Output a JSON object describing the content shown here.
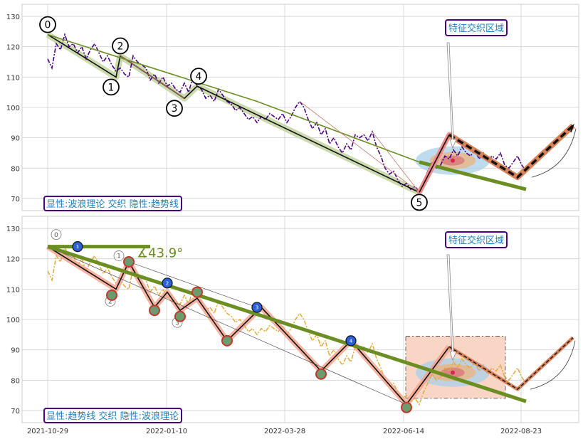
{
  "colors": {
    "grid": "#cfcfcf",
    "axis": "#cccccc",
    "tick_text": "#333333",
    "price_top": "#4b0082",
    "price_bottom": "#e6a933",
    "trend": "#6b8e23",
    "label_border": "#4b0082",
    "label_text": "#1e7fbf",
    "salmon": "#f4a08a",
    "blue_badge": "#2a5fd6",
    "green_badge": "#6b9b6f"
  },
  "chart_data": [
    {
      "type": "line",
      "name": "top-panel",
      "ylim": [
        66,
        134
      ],
      "yticks": [
        70,
        80,
        90,
        100,
        110,
        120,
        130
      ],
      "xticks": [
        "2021-10-29",
        "2022-01-10",
        "2022-03-28",
        "2022-06-14",
        "2022-08-23"
      ],
      "price": [
        [
          0,
          116
        ],
        [
          1,
          113
        ],
        [
          2,
          121
        ],
        [
          3,
          119
        ],
        [
          4,
          124
        ],
        [
          5,
          120
        ],
        [
          6,
          121
        ],
        [
          7,
          118
        ],
        [
          8,
          120
        ],
        [
          9,
          116
        ],
        [
          10,
          119
        ],
        [
          11,
          121
        ],
        [
          12,
          118
        ],
        [
          13,
          115
        ],
        [
          14,
          117
        ],
        [
          15,
          114
        ],
        [
          16,
          112
        ],
        [
          17,
          113
        ],
        [
          18,
          111
        ],
        [
          19,
          110
        ],
        [
          20,
          117
        ],
        [
          21,
          115
        ],
        [
          22,
          114
        ],
        [
          23,
          113
        ],
        [
          24,
          109
        ],
        [
          25,
          111
        ],
        [
          26,
          108
        ],
        [
          27,
          110
        ],
        [
          28,
          107
        ],
        [
          29,
          108
        ],
        [
          30,
          106
        ],
        [
          31,
          105
        ],
        [
          32,
          108
        ],
        [
          33,
          105
        ],
        [
          34,
          110
        ],
        [
          35,
          107
        ],
        [
          36,
          106
        ],
        [
          37,
          103
        ],
        [
          38,
          104
        ],
        [
          39,
          102
        ],
        [
          40,
          106
        ],
        [
          41,
          104
        ],
        [
          42,
          102
        ],
        [
          43,
          101
        ],
        [
          44,
          99
        ],
        [
          45,
          100
        ],
        [
          46,
          98
        ],
        [
          47,
          96
        ],
        [
          48,
          97
        ],
        [
          49,
          95
        ],
        [
          50,
          97
        ],
        [
          51,
          96
        ],
        [
          52,
          98
        ],
        [
          53,
          97
        ],
        [
          54,
          96
        ],
        [
          55,
          98
        ],
        [
          56,
          95
        ],
        [
          57,
          97
        ],
        [
          58,
          100
        ],
        [
          59,
          102
        ],
        [
          60,
          100
        ],
        [
          61,
          96
        ],
        [
          62,
          93
        ],
        [
          63,
          95
        ],
        [
          64,
          91
        ],
        [
          65,
          93
        ],
        [
          66,
          88
        ],
        [
          67,
          90
        ],
        [
          68,
          87
        ],
        [
          69,
          85
        ],
        [
          70,
          88
        ],
        [
          71,
          86
        ],
        [
          72,
          91
        ],
        [
          73,
          90
        ],
        [
          74,
          91
        ],
        [
          75,
          89
        ],
        [
          76,
          92
        ],
        [
          77,
          87
        ],
        [
          78,
          84
        ],
        [
          79,
          80
        ],
        [
          80,
          78
        ],
        [
          81,
          79
        ],
        [
          82,
          76
        ],
        [
          83,
          74
        ],
        [
          84,
          75
        ],
        [
          85,
          73
        ],
        [
          86,
          74
        ],
        [
          87,
          72
        ],
        [
          88,
          76
        ],
        [
          89,
          79
        ],
        [
          90,
          82
        ],
        [
          91,
          80
        ],
        [
          92,
          81
        ],
        [
          93,
          84
        ],
        [
          94,
          83
        ],
        [
          95,
          86
        ],
        [
          96,
          84
        ],
        [
          97,
          87
        ],
        [
          98,
          85
        ],
        [
          99,
          84
        ],
        [
          100,
          86
        ],
        [
          101,
          83
        ],
        [
          102,
          85
        ],
        [
          103,
          82
        ],
        [
          104,
          84
        ],
        [
          105,
          83
        ],
        [
          106,
          85
        ],
        [
          107,
          81
        ],
        [
          108,
          80
        ],
        [
          109,
          82
        ],
        [
          110,
          84
        ],
        [
          111,
          81
        ],
        [
          112,
          79
        ]
      ],
      "wave_points": [
        [
          0,
          124
        ],
        [
          16,
          110
        ],
        [
          17,
          117
        ],
        [
          32,
          103
        ],
        [
          35,
          107
        ],
        [
          87,
          72
        ]
      ],
      "wave_labels": [
        "0",
        "1",
        "2",
        "3",
        "4",
        "5"
      ],
      "trend_upper": [
        [
          0,
          124
        ],
        [
          49,
          102
        ],
        [
          87,
          82
        ]
      ],
      "trend_lower": [
        [
          87,
          82
        ],
        [
          112,
          73
        ]
      ],
      "forecast_solid": [
        [
          87,
          72
        ],
        [
          94,
          91
        ]
      ],
      "forecast_dashed": [
        [
          94,
          91
        ],
        [
          110,
          77
        ],
        [
          123,
          94
        ]
      ],
      "label": "显性:波浪理论 交织 隐性:趋势线",
      "zone_label": "特征交织区域"
    },
    {
      "type": "line",
      "name": "bottom-panel",
      "ylim": [
        66,
        134
      ],
      "yticks": [
        70,
        80,
        90,
        100,
        110,
        120,
        130
      ],
      "xticks": [
        "2021-10-29",
        "2022-01-10",
        "2022-03-28",
        "2022-06-14",
        "2022-08-23"
      ],
      "zigzag": [
        [
          0,
          124
        ],
        [
          16,
          110
        ],
        [
          19,
          119
        ],
        [
          25,
          104
        ],
        [
          28,
          109
        ],
        [
          31,
          103
        ],
        [
          35,
          107
        ],
        [
          42,
          93
        ],
        [
          50,
          104
        ],
        [
          64,
          83
        ],
        [
          71,
          93
        ],
        [
          84,
          72
        ],
        [
          94,
          91
        ],
        [
          110,
          77
        ],
        [
          123,
          94
        ]
      ],
      "blue_badges": [
        [
          7,
          124,
          "1"
        ],
        [
          28,
          112,
          "2"
        ],
        [
          49,
          104,
          "3"
        ],
        [
          71,
          93,
          "4"
        ]
      ],
      "green_badges": [
        [
          15,
          108
        ],
        [
          19,
          119
        ],
        [
          25,
          103
        ],
        [
          31,
          101
        ],
        [
          35,
          109
        ],
        [
          42,
          93
        ],
        [
          64,
          82
        ],
        [
          84,
          71
        ]
      ],
      "horizontal_line": [
        [
          0,
          124
        ],
        [
          24,
          124
        ]
      ],
      "trend_line": [
        [
          0,
          124
        ],
        [
          112,
          73
        ]
      ],
      "angle_label": "∡43.9°",
      "circle_labels": [
        "0",
        "2",
        "1",
        "3"
      ],
      "label": "显性:趋势线 交织 隐性:波浪理论",
      "zone_label": "特征交织区域"
    }
  ]
}
